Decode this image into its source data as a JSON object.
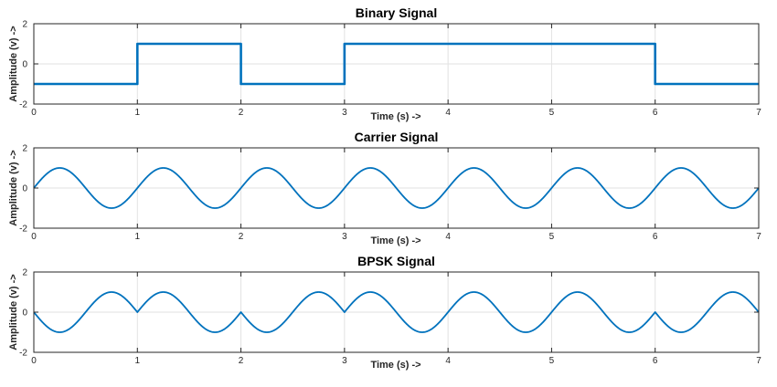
{
  "chart_data": [
    {
      "type": "line",
      "title": "Binary Signal",
      "xlabel": "Time (s) ->",
      "ylabel": "Amplitude (v) ->",
      "xlim": [
        0,
        7
      ],
      "ylim": [
        -2,
        2
      ],
      "xticks": [
        0,
        1,
        2,
        3,
        4,
        5,
        6,
        7
      ],
      "yticks": [
        -2,
        0,
        2
      ],
      "grid": true,
      "color": "#0072bd",
      "signal": "binary",
      "bits": [
        0,
        1,
        0,
        1,
        1,
        1,
        0
      ],
      "x": [
        0,
        1,
        1,
        2,
        2,
        3,
        3,
        6,
        6,
        7
      ],
      "y": [
        -1,
        -1,
        1,
        1,
        -1,
        -1,
        1,
        1,
        -1,
        -1
      ]
    },
    {
      "type": "line",
      "title": "Carrier Signal",
      "xlabel": "Time (s) ->",
      "ylabel": "Amplitude (v) ->",
      "xlim": [
        0,
        7
      ],
      "ylim": [
        -2,
        2
      ],
      "xticks": [
        0,
        1,
        2,
        3,
        4,
        5,
        6,
        7
      ],
      "yticks": [
        -2,
        0,
        2
      ],
      "grid": true,
      "color": "#0072bd",
      "signal": "carrier",
      "amplitude": 1,
      "frequency_hz": 1,
      "formula": "y = sin(2*pi*t)"
    },
    {
      "type": "line",
      "title": "BPSK Signal",
      "xlabel": "Time (s) ->",
      "ylabel": "Amplitude (v) ->",
      "xlim": [
        0,
        7
      ],
      "ylim": [
        -2,
        2
      ],
      "xticks": [
        0,
        1,
        2,
        3,
        4,
        5,
        6,
        7
      ],
      "yticks": [
        -2,
        0,
        2
      ],
      "grid": true,
      "color": "#0072bd",
      "signal": "bpsk",
      "bits": [
        0,
        1,
        0,
        1,
        1,
        1,
        0
      ],
      "formula": "y = (2*bit-1) * sin(2*pi*t)"
    }
  ]
}
